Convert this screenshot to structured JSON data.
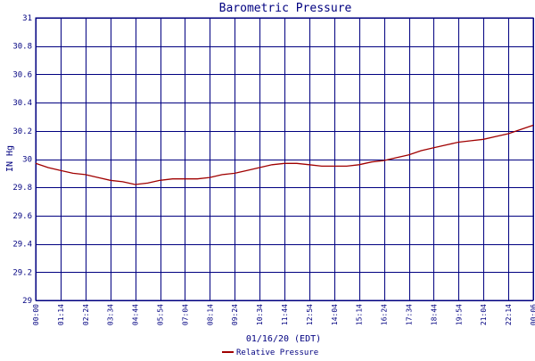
{
  "chart_data": {
    "type": "line",
    "title": "Barometric Pressure",
    "xlabel": "01/16/20 (EDT)",
    "ylabel": "IN Hg",
    "ylim": [
      29,
      31
    ],
    "y_ticks": [
      "29",
      "29.2",
      "29.4",
      "29.6",
      "29.8",
      "30",
      "30.2",
      "30.4",
      "30.6",
      "30.8",
      "31"
    ],
    "x_ticks": [
      "00:00",
      "01:14",
      "02:24",
      "03:34",
      "04:44",
      "05:54",
      "07:04",
      "08:14",
      "09:24",
      "10:34",
      "11:44",
      "12:54",
      "14:04",
      "15:14",
      "16:24",
      "17:34",
      "18:44",
      "19:54",
      "21:04",
      "22:14",
      "00:06"
    ],
    "grid": true,
    "legend_position": "bottom-center",
    "series": [
      {
        "name": "Relative Pressure",
        "color": "#a00000",
        "x": [
          0,
          0.5,
          1,
          1.5,
          2,
          2.5,
          3,
          3.5,
          4,
          4.5,
          5,
          5.5,
          6,
          6.5,
          7,
          7.5,
          8,
          8.5,
          9,
          9.5,
          10,
          10.5,
          11,
          11.5,
          12,
          12.5,
          13,
          13.5,
          14,
          14.5,
          15,
          15.5,
          16,
          16.5,
          17,
          17.5,
          18,
          18.5,
          19,
          19.5,
          20
        ],
        "values": [
          29.97,
          29.94,
          29.92,
          29.9,
          29.89,
          29.87,
          29.85,
          29.84,
          29.82,
          29.83,
          29.85,
          29.86,
          29.86,
          29.86,
          29.87,
          29.89,
          29.9,
          29.92,
          29.94,
          29.96,
          29.97,
          29.97,
          29.96,
          29.95,
          29.95,
          29.95,
          29.96,
          29.98,
          29.99,
          30.01,
          30.03,
          30.06,
          30.08,
          30.1,
          30.12,
          30.13,
          30.14,
          30.16,
          30.18,
          30.21,
          30.24
        ]
      }
    ]
  }
}
